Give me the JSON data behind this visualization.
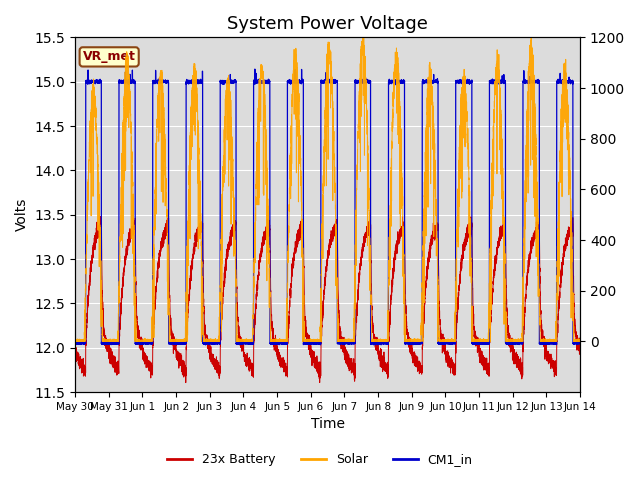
{
  "title": "System Power Voltage",
  "xlabel": "Time",
  "ylabel": "Volts",
  "ylim": [
    11.5,
    15.5
  ],
  "ylim2": [
    -200,
    1200
  ],
  "yticks_left": [
    11.5,
    12.0,
    12.5,
    13.0,
    13.5,
    14.0,
    14.5,
    15.0,
    15.5
  ],
  "yticks_right": [
    0,
    200,
    400,
    600,
    800,
    1000,
    1200
  ],
  "bg_color": "#dcdcdc",
  "fig_color": "#ffffff",
  "annotation_text": "VR_met",
  "annotation_fg": "#8B0000",
  "annotation_bg": "#ffffcc",
  "annotation_border": "#8B4513",
  "line_colors": {
    "battery": "#cc0000",
    "solar": "#ffa500",
    "cm1": "#0000cc"
  },
  "legend_labels": [
    "23x Battery",
    "Solar",
    "CM1_in"
  ],
  "n_days": 15,
  "tick_labels": [
    "May 30",
    "May 31",
    "Jun 1",
    "Jun 2",
    "Jun 3",
    "Jun 4",
    "Jun 5",
    "Jun 6",
    "Jun 7",
    "Jun 8",
    "Jun 9",
    "Jun 10",
    "Jun 11",
    "Jun 12",
    "Jun 13",
    "Jun 14"
  ],
  "solar_peak": 1150,
  "cm1_high": 15.0,
  "cm1_low": 12.05,
  "batt_night_min": 11.78,
  "batt_night_max": 12.0,
  "batt_charge_peak": 13.45,
  "solar_on_hour": 6.5,
  "solar_off_hour": 19.5,
  "cm1_on_hour": 7.0,
  "cm1_off_hour": 19.0
}
